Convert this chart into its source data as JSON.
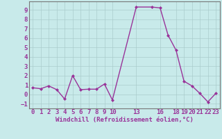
{
  "x": [
    0,
    1,
    2,
    3,
    4,
    5,
    6,
    7,
    8,
    9,
    10,
    13,
    15,
    16,
    17,
    18,
    19,
    20,
    21,
    22,
    23
  ],
  "y": [
    0.7,
    0.6,
    0.9,
    0.5,
    -0.5,
    2.0,
    0.5,
    0.55,
    0.55,
    1.1,
    -0.6,
    9.3,
    9.3,
    9.2,
    6.3,
    4.7,
    1.4,
    0.9,
    0.1,
    -0.8,
    0.1
  ],
  "line_color": "#993399",
  "marker_color": "#993399",
  "bg_color": "#c8eaea",
  "grid_color": "#aacccc",
  "xlabel": "Windchill (Refroidissement éolien,°C)",
  "xlim": [
    -0.5,
    23.5
  ],
  "ylim": [
    -1.5,
    9.9
  ],
  "yticks": [
    -1,
    0,
    1,
    2,
    3,
    4,
    5,
    6,
    7,
    8,
    9
  ],
  "xticks": [
    0,
    1,
    2,
    3,
    4,
    5,
    6,
    7,
    8,
    9,
    10,
    13,
    16,
    18,
    19,
    20,
    21,
    22,
    23
  ],
  "xtick_labels": [
    "0",
    "1",
    "2",
    "3",
    "4",
    "5",
    "6",
    "7",
    "8",
    "9",
    "10",
    "13",
    "16",
    "18",
    "19",
    "20",
    "21",
    "22",
    "23"
  ],
  "font_size": 6.5,
  "xlabel_fontsize": 6.5,
  "linewidth": 1.0,
  "markersize": 2.0
}
